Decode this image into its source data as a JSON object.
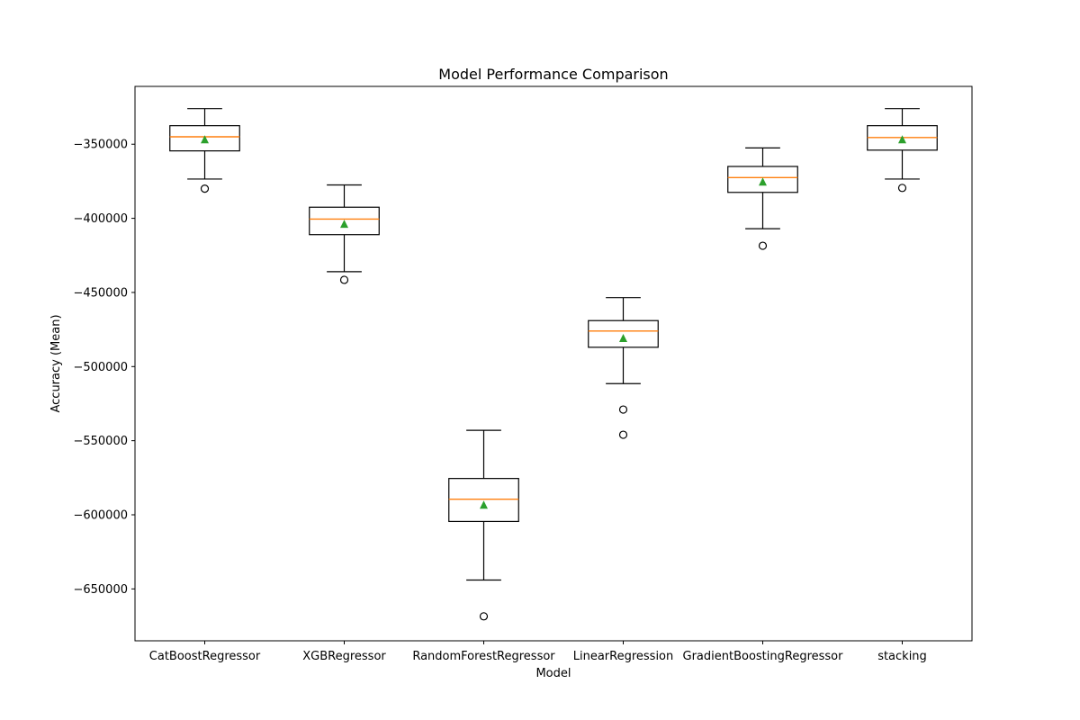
{
  "chart_data": {
    "type": "box",
    "title": "Model Performance Comparison",
    "xlabel": "Model",
    "ylabel": "Accuracy (Mean)",
    "ylim": [
      -685000,
      -311000
    ],
    "yticks": [
      -350000,
      -400000,
      -450000,
      -500000,
      -550000,
      -600000,
      -650000
    ],
    "ytick_labels": [
      "−350000",
      "−400000",
      "−450000",
      "−500000",
      "−550000",
      "−600000",
      "−650000"
    ],
    "categories": [
      "CatBoostRegressor",
      "XGBRegressor",
      "RandomForestRegressor",
      "LinearRegression",
      "GradientBoostingRegressor",
      "stacking"
    ],
    "boxes": [
      {
        "name": "CatBoostRegressor",
        "whisker_high": -326000,
        "q3": -337500,
        "median": -345000,
        "q1": -354500,
        "whisker_low": -373500,
        "mean": -347000,
        "outliers": [
          -380000
        ]
      },
      {
        "name": "XGBRegressor",
        "whisker_high": -377500,
        "q3": -392500,
        "median": -400500,
        "q1": -411000,
        "whisker_low": -436000,
        "mean": -404000,
        "outliers": [
          -441500
        ]
      },
      {
        "name": "RandomForestRegressor",
        "whisker_high": -543000,
        "q3": -575500,
        "median": -589500,
        "q1": -604500,
        "whisker_low": -644000,
        "mean": -593500,
        "outliers": [
          -668500
        ]
      },
      {
        "name": "LinearRegression",
        "whisker_high": -453500,
        "q3": -469000,
        "median": -476000,
        "q1": -487000,
        "whisker_low": -511500,
        "mean": -481000,
        "outliers": [
          -529000,
          -546000
        ]
      },
      {
        "name": "GradientBoostingRegressor",
        "whisker_high": -352500,
        "q3": -365000,
        "median": -372500,
        "q1": -382500,
        "whisker_low": -407000,
        "mean": -375500,
        "outliers": [
          -418500
        ]
      },
      {
        "name": "stacking",
        "whisker_high": -326000,
        "q3": -337500,
        "median": -345500,
        "q1": -354000,
        "whisker_low": -373500,
        "mean": -347000,
        "outliers": [
          -379500
        ]
      }
    ],
    "grid": false,
    "legend": "none",
    "colors": {
      "box": "#000000",
      "median": "#ff7f0e",
      "mean": "#2ca02c",
      "outlier_edge": "#000000"
    }
  }
}
